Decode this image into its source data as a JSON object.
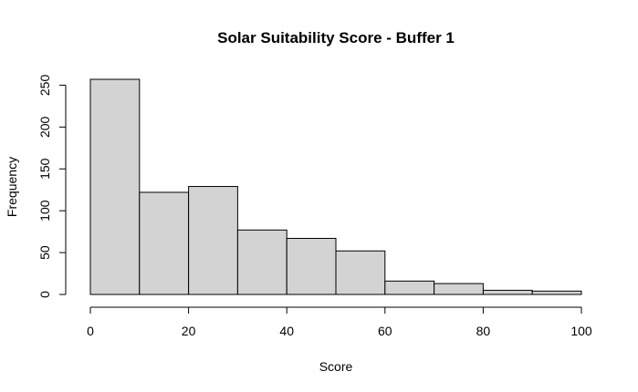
{
  "chart_data": {
    "type": "bar",
    "title": "Solar Suitability Score - Buffer 1",
    "xlabel": "Score",
    "ylabel": "Frequency",
    "bin_edges": [
      0,
      10,
      20,
      30,
      40,
      50,
      60,
      70,
      80,
      90,
      100
    ],
    "values": [
      257,
      122,
      129,
      77,
      67,
      52,
      16,
      13,
      5,
      4
    ],
    "xlim": [
      0,
      100
    ],
    "ylim": [
      0,
      257
    ],
    "x_ticks": [
      0,
      20,
      40,
      60,
      80,
      100
    ],
    "y_ticks": [
      0,
      50,
      100,
      150,
      200,
      250
    ],
    "grid": false,
    "colors": {
      "bar_fill": "#d3d3d3",
      "bar_stroke": "#000000"
    }
  }
}
